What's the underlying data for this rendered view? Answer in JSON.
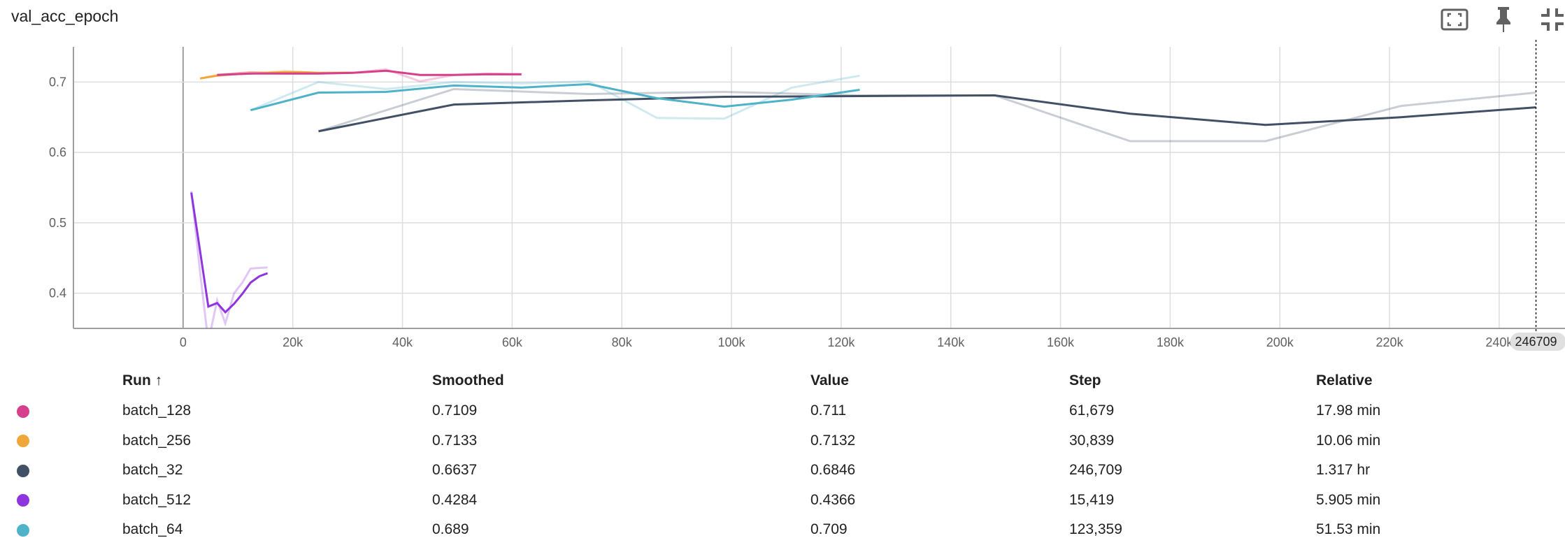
{
  "card": {
    "title": "val_acc_epoch"
  },
  "toolbar": {
    "fit_icon": "fit-to-domain-icon",
    "pin_icon": "pin-icon",
    "collapse_icon": "collapse-icon"
  },
  "table": {
    "headers": {
      "run": "Run ↑",
      "smoothed": "Smoothed",
      "value": "Value",
      "step": "Step",
      "relative": "Relative"
    },
    "rows": [
      {
        "run": "batch_128",
        "color": "#d63f8c",
        "smoothed": "0.7109",
        "value": "0.711",
        "step": "61,679",
        "relative": "17.98 min"
      },
      {
        "run": "batch_256",
        "color": "#f0a73a",
        "smoothed": "0.7133",
        "value": "0.7132",
        "step": "30,839",
        "relative": "10.06 min"
      },
      {
        "run": "batch_32",
        "color": "#425066",
        "smoothed": "0.6637",
        "value": "0.6846",
        "step": "246,709",
        "relative": "1.317 hr"
      },
      {
        "run": "batch_512",
        "color": "#8e35dd",
        "smoothed": "0.4284",
        "value": "0.4366",
        "step": "15,419",
        "relative": "5.905 min"
      },
      {
        "run": "batch_64",
        "color": "#4eb3c8",
        "smoothed": "0.689",
        "value": "0.709",
        "step": "123,359",
        "relative": "51.53 min"
      }
    ]
  },
  "chart_data": {
    "type": "line",
    "title": "val_acc_epoch",
    "xlim": [
      -20000,
      252000
    ],
    "ylim": [
      0.35,
      0.75
    ],
    "x_ticks": [
      0,
      20000,
      40000,
      60000,
      80000,
      100000,
      120000,
      140000,
      160000,
      180000,
      200000,
      220000,
      240000
    ],
    "x_tick_labels": [
      "0",
      "20k",
      "40k",
      "60k",
      "80k",
      "100k",
      "120k",
      "140k",
      "160k",
      "180k",
      "200k",
      "220k",
      "240k"
    ],
    "y_ticks": [
      0.4,
      0.5,
      0.6,
      0.7
    ],
    "y_tick_labels": [
      "0.4",
      "0.5",
      "0.6",
      "0.7"
    ],
    "grid": true,
    "cursor": {
      "x": 246709,
      "label": "246709"
    },
    "series": [
      {
        "name": "batch_32",
        "color": "#425066",
        "raw": [
          [
            24700,
            0.63
          ],
          [
            49400,
            0.69
          ],
          [
            74000,
            0.683
          ],
          [
            98700,
            0.686
          ],
          [
            123400,
            0.681
          ],
          [
            148000,
            0.681
          ],
          [
            172700,
            0.616
          ],
          [
            197400,
            0.616
          ],
          [
            222100,
            0.666
          ],
          [
            246700,
            0.685
          ]
        ],
        "smoothed": [
          [
            24700,
            0.63
          ],
          [
            49400,
            0.668
          ],
          [
            74000,
            0.674
          ],
          [
            98700,
            0.679
          ],
          [
            123400,
            0.68
          ],
          [
            148000,
            0.681
          ],
          [
            172700,
            0.655
          ],
          [
            197400,
            0.639
          ],
          [
            222100,
            0.65
          ],
          [
            246700,
            0.664
          ]
        ]
      },
      {
        "name": "batch_64",
        "color": "#4eb3c8",
        "raw": [
          [
            12300,
            0.66
          ],
          [
            24700,
            0.7
          ],
          [
            37000,
            0.69
          ],
          [
            49400,
            0.7
          ],
          [
            61700,
            0.698
          ],
          [
            74000,
            0.701
          ],
          [
            86400,
            0.649
          ],
          [
            98700,
            0.648
          ],
          [
            111000,
            0.692
          ],
          [
            123400,
            0.709
          ]
        ],
        "smoothed": [
          [
            12300,
            0.66
          ],
          [
            24700,
            0.685
          ],
          [
            37000,
            0.686
          ],
          [
            49400,
            0.695
          ],
          [
            61700,
            0.692
          ],
          [
            74000,
            0.697
          ],
          [
            86400,
            0.677
          ],
          [
            98700,
            0.665
          ],
          [
            111000,
            0.675
          ],
          [
            123400,
            0.689
          ]
        ]
      },
      {
        "name": "batch_256",
        "color": "#f0a73a",
        "raw": [
          [
            3100,
            0.705
          ],
          [
            6200,
            0.71
          ],
          [
            9300,
            0.712
          ],
          [
            12300,
            0.714
          ],
          [
            15400,
            0.714
          ],
          [
            18500,
            0.716
          ],
          [
            21600,
            0.714
          ],
          [
            24700,
            0.713
          ],
          [
            27800,
            0.713
          ],
          [
            30800,
            0.7132
          ]
        ],
        "smoothed": [
          [
            3100,
            0.705
          ],
          [
            6200,
            0.709
          ],
          [
            9300,
            0.711
          ],
          [
            12300,
            0.712
          ],
          [
            15400,
            0.713
          ],
          [
            18500,
            0.714
          ],
          [
            21600,
            0.714
          ],
          [
            24700,
            0.713
          ],
          [
            27800,
            0.713
          ],
          [
            30800,
            0.7133
          ]
        ]
      },
      {
        "name": "batch_128",
        "color": "#d63f8c",
        "raw": [
          [
            6200,
            0.71
          ],
          [
            12300,
            0.714
          ],
          [
            18500,
            0.712
          ],
          [
            24700,
            0.712
          ],
          [
            30800,
            0.713
          ],
          [
            37000,
            0.718
          ],
          [
            43200,
            0.701
          ],
          [
            49400,
            0.71
          ],
          [
            55500,
            0.712
          ],
          [
            61700,
            0.711
          ]
        ],
        "smoothed": [
          [
            6200,
            0.71
          ],
          [
            12300,
            0.712
          ],
          [
            18500,
            0.712
          ],
          [
            24700,
            0.712
          ],
          [
            30800,
            0.713
          ],
          [
            37000,
            0.716
          ],
          [
            43200,
            0.71
          ],
          [
            49400,
            0.71
          ],
          [
            55500,
            0.711
          ],
          [
            61700,
            0.7109
          ]
        ]
      },
      {
        "name": "batch_512",
        "color": "#8e35dd",
        "raw": [
          [
            1500,
            0.545
          ],
          [
            3100,
            0.43
          ],
          [
            4600,
            0.33
          ],
          [
            6200,
            0.39
          ],
          [
            7700,
            0.357
          ],
          [
            9300,
            0.4
          ],
          [
            10800,
            0.415
          ],
          [
            12300,
            0.435
          ],
          [
            13900,
            0.436
          ],
          [
            15400,
            0.4366
          ]
        ],
        "smoothed": [
          [
            1500,
            0.543
          ],
          [
            3100,
            0.46
          ],
          [
            4600,
            0.381
          ],
          [
            6200,
            0.386
          ],
          [
            7700,
            0.373
          ],
          [
            9300,
            0.385
          ],
          [
            10800,
            0.399
          ],
          [
            12300,
            0.415
          ],
          [
            13900,
            0.424
          ],
          [
            15400,
            0.4284
          ]
        ]
      }
    ]
  }
}
